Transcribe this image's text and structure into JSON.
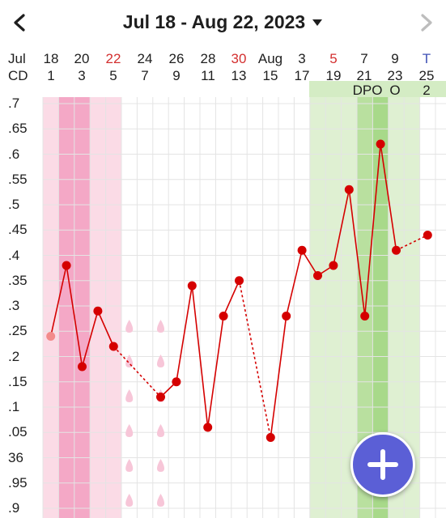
{
  "header": {
    "date_range": "Jul 18 - Aug 22, 2023",
    "prev_icon": "chevron-left-icon",
    "next_icon": "chevron-right-icon",
    "dropdown_icon": "caret-down-icon"
  },
  "row_labels": {
    "month": "Jul",
    "cd": "CD"
  },
  "date_columns": [
    {
      "date": "18",
      "cd": "1",
      "color": "#1e1e1e"
    },
    {
      "date": "20",
      "cd": "3",
      "color": "#1e1e1e"
    },
    {
      "date": "22",
      "cd": "5",
      "color": "#d32f2f"
    },
    {
      "date": "24",
      "cd": "7",
      "color": "#1e1e1e"
    },
    {
      "date": "26",
      "cd": "9",
      "color": "#1e1e1e"
    },
    {
      "date": "28",
      "cd": "11",
      "color": "#1e1e1e"
    },
    {
      "date": "30",
      "cd": "13",
      "color": "#d32f2f"
    },
    {
      "date": "Aug",
      "cd": "15",
      "color": "#1e1e1e"
    },
    {
      "date": "3",
      "cd": "17",
      "color": "#1e1e1e"
    },
    {
      "date": "5",
      "cd": "19",
      "color": "#d32f2f"
    },
    {
      "date": "7",
      "cd": "21",
      "color": "#1e1e1e"
    },
    {
      "date": "9",
      "cd": "23",
      "color": "#1e1e1e"
    },
    {
      "date": "T",
      "cd": "25",
      "color": "#3f51b5"
    }
  ],
  "dpo": {
    "label": "DPO",
    "values": [
      "O",
      "2"
    ]
  },
  "y_ticks": [
    ".7",
    ".65",
    ".6",
    ".55",
    ".5",
    ".45",
    ".4",
    ".35",
    ".3",
    ".25",
    ".2",
    ".15",
    ".1",
    ".05",
    "36",
    ".95",
    ".9"
  ],
  "colors": {
    "line": "#d50000",
    "period_light": "#fbdbe6",
    "period_dark": "#f4a8c6",
    "fertile_light": "#dff0d2",
    "fertile_dark": "#a8d98a",
    "fab": "#5b5fd6",
    "drop": "#f7c6d8"
  },
  "fab_icon": "plus-icon",
  "chart_data": {
    "type": "line",
    "x_cycle_days": [
      1,
      2,
      3,
      4,
      5,
      6,
      7,
      8,
      9,
      10,
      11,
      12,
      13,
      14,
      15,
      16,
      17,
      18,
      19,
      20,
      21,
      22,
      23,
      24,
      25
    ],
    "ylim": [
      35.89,
      36.71
    ],
    "temperatures": [
      {
        "cd": 1,
        "temp": 36.24,
        "excluded": true
      },
      {
        "cd": 2,
        "temp": 36.38
      },
      {
        "cd": 3,
        "temp": 36.18
      },
      {
        "cd": 4,
        "temp": 36.29
      },
      {
        "cd": 5,
        "temp": 36.22
      },
      {
        "cd": 8,
        "temp": 36.12
      },
      {
        "cd": 9,
        "temp": 36.15
      },
      {
        "cd": 10,
        "temp": 36.34
      },
      {
        "cd": 11,
        "temp": 36.06
      },
      {
        "cd": 12,
        "temp": 36.28
      },
      {
        "cd": 13,
        "temp": 36.35
      },
      {
        "cd": 15,
        "temp": 36.04
      },
      {
        "cd": 16,
        "temp": 36.28
      },
      {
        "cd": 17,
        "temp": 36.41
      },
      {
        "cd": 18,
        "temp": 36.36
      },
      {
        "cd": 19,
        "temp": 36.38
      },
      {
        "cd": 20,
        "temp": 36.53
      },
      {
        "cd": 21,
        "temp": 36.28
      },
      {
        "cd": 22,
        "temp": 36.62
      },
      {
        "cd": 23,
        "temp": 36.41
      },
      {
        "cd": 25,
        "temp": 36.44
      }
    ],
    "period_days": [
      1,
      2,
      3,
      4,
      5
    ],
    "heavy_period_days": [
      2,
      3
    ],
    "spotting_days": [
      6,
      8
    ],
    "fertile_days": [
      18,
      19,
      20,
      21,
      22,
      23,
      24
    ],
    "peak_fertile_days": [
      21,
      22
    ],
    "ovulation_day": 22,
    "grid": true
  }
}
